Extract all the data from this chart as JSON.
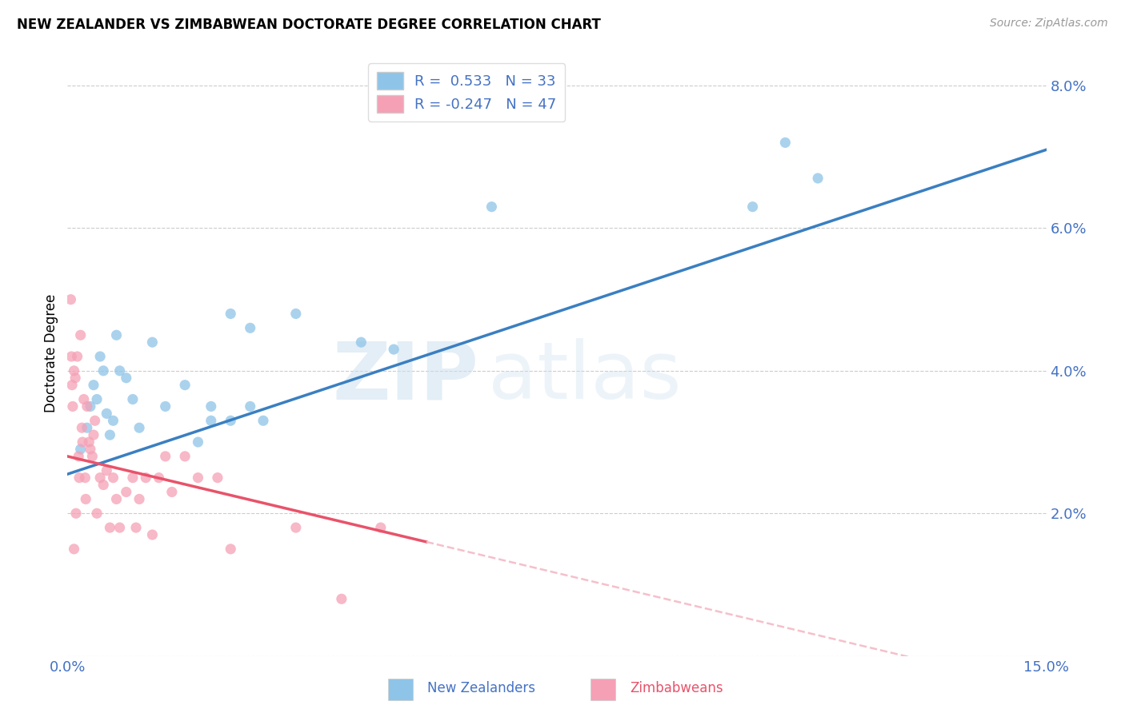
{
  "title": "NEW ZEALANDER VS ZIMBABWEAN DOCTORATE DEGREE CORRELATION CHART",
  "source": "Source: ZipAtlas.com",
  "ylabel": "Doctorate Degree",
  "xlim": [
    0.0,
    15.0
  ],
  "ylim": [
    0.0,
    8.5
  ],
  "yticks": [
    0.0,
    2.0,
    4.0,
    6.0,
    8.0
  ],
  "ytick_labels": [
    "",
    "2.0%",
    "4.0%",
    "6.0%",
    "8.0%"
  ],
  "xticks": [
    0.0,
    2.5,
    5.0,
    7.5,
    10.0,
    12.5,
    15.0
  ],
  "xtick_labels": [
    "0.0%",
    "",
    "",
    "",
    "",
    "",
    "15.0%"
  ],
  "nz_R": 0.533,
  "nz_N": 33,
  "zim_R": -0.247,
  "zim_N": 47,
  "nz_color": "#8ec4e8",
  "zim_color": "#f5a0b5",
  "nz_line_color": "#3a7fc1",
  "zim_line_color": "#e8536a",
  "zim_dash_color": "#f5c0cb",
  "background_color": "#ffffff",
  "nz_x": [
    0.2,
    0.3,
    0.35,
    0.4,
    0.45,
    0.5,
    0.55,
    0.6,
    0.65,
    0.7,
    0.75,
    0.8,
    0.9,
    1.0,
    1.1,
    1.3,
    1.5,
    1.8,
    2.0,
    2.2,
    2.5,
    2.8,
    3.0,
    3.5,
    4.5,
    5.0,
    6.5,
    10.5,
    11.0,
    11.5,
    2.2,
    2.5,
    2.8
  ],
  "nz_y": [
    2.9,
    3.2,
    3.5,
    3.8,
    3.6,
    4.2,
    4.0,
    3.4,
    3.1,
    3.3,
    4.5,
    4.0,
    3.9,
    3.6,
    3.2,
    4.4,
    3.5,
    3.8,
    3.0,
    3.3,
    4.8,
    3.5,
    3.3,
    4.8,
    4.4,
    4.3,
    6.3,
    6.3,
    7.2,
    6.7,
    3.5,
    3.3,
    4.6
  ],
  "zim_x": [
    0.05,
    0.06,
    0.07,
    0.08,
    0.1,
    0.12,
    0.13,
    0.15,
    0.17,
    0.18,
    0.2,
    0.22,
    0.23,
    0.25,
    0.27,
    0.28,
    0.3,
    0.33,
    0.35,
    0.38,
    0.4,
    0.42,
    0.45,
    0.5,
    0.55,
    0.6,
    0.65,
    0.7,
    0.75,
    0.8,
    0.9,
    1.0,
    1.05,
    1.1,
    1.2,
    1.3,
    1.4,
    1.5,
    1.6,
    1.8,
    2.0,
    2.3,
    2.5,
    3.5,
    4.2,
    4.8,
    0.1
  ],
  "zim_y": [
    5.0,
    4.2,
    3.8,
    3.5,
    4.0,
    3.9,
    2.0,
    4.2,
    2.8,
    2.5,
    4.5,
    3.2,
    3.0,
    3.6,
    2.5,
    2.2,
    3.5,
    3.0,
    2.9,
    2.8,
    3.1,
    3.3,
    2.0,
    2.5,
    2.4,
    2.6,
    1.8,
    2.5,
    2.2,
    1.8,
    2.3,
    2.5,
    1.8,
    2.2,
    2.5,
    1.7,
    2.5,
    2.8,
    2.3,
    2.8,
    2.5,
    2.5,
    1.5,
    1.8,
    0.8,
    1.8,
    1.5
  ],
  "nz_line_x0": 0.0,
  "nz_line_y0": 2.55,
  "nz_line_x1": 15.0,
  "nz_line_y1": 7.1,
  "zim_line_x0": 0.0,
  "zim_line_y0": 2.8,
  "zim_line_x1": 5.5,
  "zim_line_y1": 1.6,
  "zim_dash_x0": 5.5,
  "zim_dash_x1": 15.0
}
